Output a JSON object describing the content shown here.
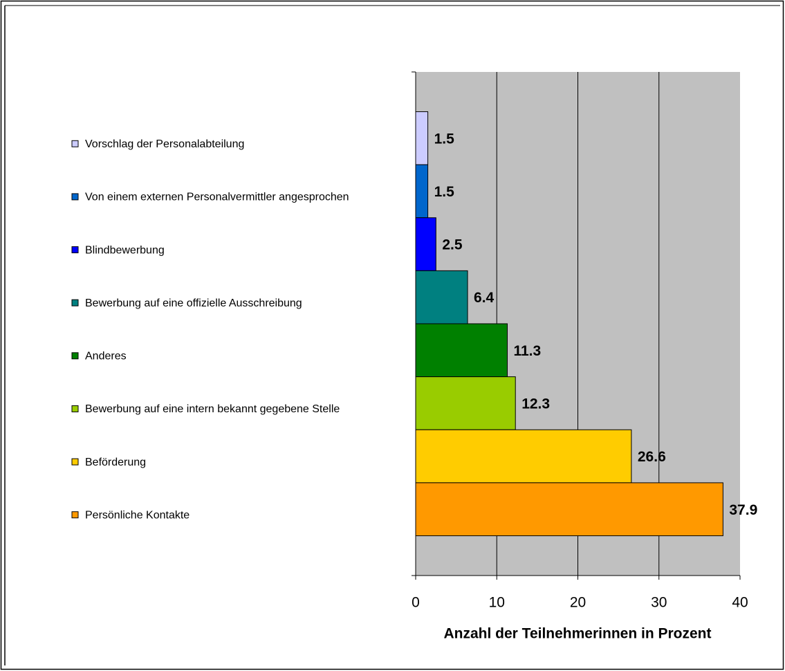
{
  "chart_data": {
    "type": "barh",
    "categories": [
      "Vorschlag der Personalabteilung",
      "Von einem externen Personalvermittler angesprochen",
      "Blindbewerbung",
      "Bewerbung auf eine offizielle Ausschreibung",
      "Anderes",
      "Bewerbung auf eine intern bekannt gegebene Stelle",
      "Beförderung",
      "Persönliche Kontakte"
    ],
    "values": [
      1.5,
      1.5,
      2.5,
      6.4,
      11.3,
      12.3,
      26.6,
      37.9
    ],
    "colors": [
      "#ccccff",
      "#0066cc",
      "#0000ff",
      "#008080",
      "#008000",
      "#99cc00",
      "#ffcc00",
      "#ff9900"
    ],
    "xlabel": "Anzahl der Teilnehmerinnen in Prozent",
    "xlim": [
      0,
      40
    ],
    "xticks": [
      0,
      10,
      20,
      30,
      40
    ],
    "grid": true
  }
}
